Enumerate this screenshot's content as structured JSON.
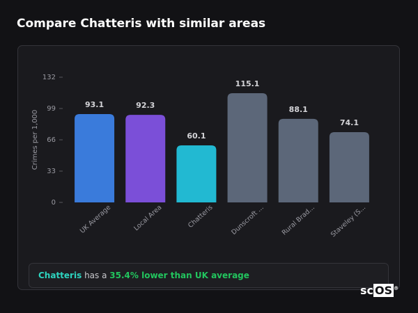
{
  "header": {
    "title": "Compare Chatteris with similar areas"
  },
  "chart_data": {
    "type": "bar",
    "y_label": "Crimes per 1,000",
    "categories": [
      "UK Average",
      "Local Area",
      "Chatteris",
      "Dunscroft ...",
      "Rural Brad...",
      "Staveley (S..."
    ],
    "values": [
      93.1,
      92.3,
      60.1,
      115.1,
      88.1,
      74.1
    ],
    "colors": [
      "#3a7bdb",
      "#7b4fd8",
      "#22b9d2",
      "#5c6779",
      "#5c6779",
      "#5c6779"
    ],
    "ylim": [
      0,
      132
    ],
    "yticks": [
      0,
      33,
      66,
      99,
      132
    ]
  },
  "note": {
    "area": "Chatteris",
    "text": "has a",
    "highlight": "35.4% lower than UK average"
  },
  "logo": {
    "prefix": "sc",
    "box": "OS",
    "mark": "®"
  }
}
